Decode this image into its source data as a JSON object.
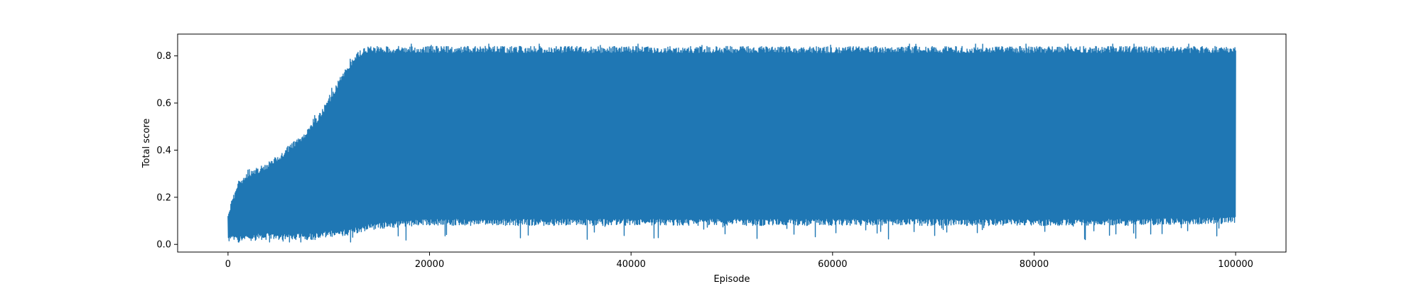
{
  "chart_data": {
    "type": "line",
    "title": "",
    "xlabel": "Episode",
    "ylabel": "Total score",
    "xlim": [
      -5000,
      105000
    ],
    "ylim": [
      -0.0325,
      0.8925
    ],
    "x_ticks": [
      0,
      20000,
      40000,
      60000,
      80000,
      100000
    ],
    "x_tick_labels": [
      "0",
      "20000",
      "40000",
      "60000",
      "80000",
      "100000"
    ],
    "y_ticks": [
      0.0,
      0.2,
      0.4,
      0.6,
      0.8
    ],
    "y_tick_labels": [
      "0.0",
      "0.2",
      "0.4",
      "0.6",
      "0.8"
    ],
    "grid": false,
    "legend": "none",
    "series": [
      {
        "color": "#1f77b4",
        "x": [
          0,
          1000,
          2000,
          3000,
          4000,
          5000,
          6000,
          7000,
          8000,
          9000,
          10000,
          11000,
          12000,
          13000,
          14000,
          16000,
          20000,
          30000,
          40000,
          50000,
          60000,
          70000,
          80000,
          90000,
          100000
        ],
        "upper": [
          0.14,
          0.27,
          0.31,
          0.33,
          0.35,
          0.38,
          0.42,
          0.45,
          0.5,
          0.55,
          0.62,
          0.7,
          0.77,
          0.82,
          0.84,
          0.84,
          0.84,
          0.84,
          0.84,
          0.84,
          0.84,
          0.84,
          0.84,
          0.84,
          0.84
        ],
        "lower": [
          0.01,
          0.01,
          0.01,
          0.02,
          0.02,
          0.02,
          0.02,
          0.02,
          0.02,
          0.02,
          0.03,
          0.03,
          0.04,
          0.05,
          0.06,
          0.07,
          0.08,
          0.08,
          0.08,
          0.08,
          0.08,
          0.08,
          0.08,
          0.08,
          0.09
        ],
        "peak_max": 0.85,
        "peak_min": 0.01
      }
    ]
  }
}
